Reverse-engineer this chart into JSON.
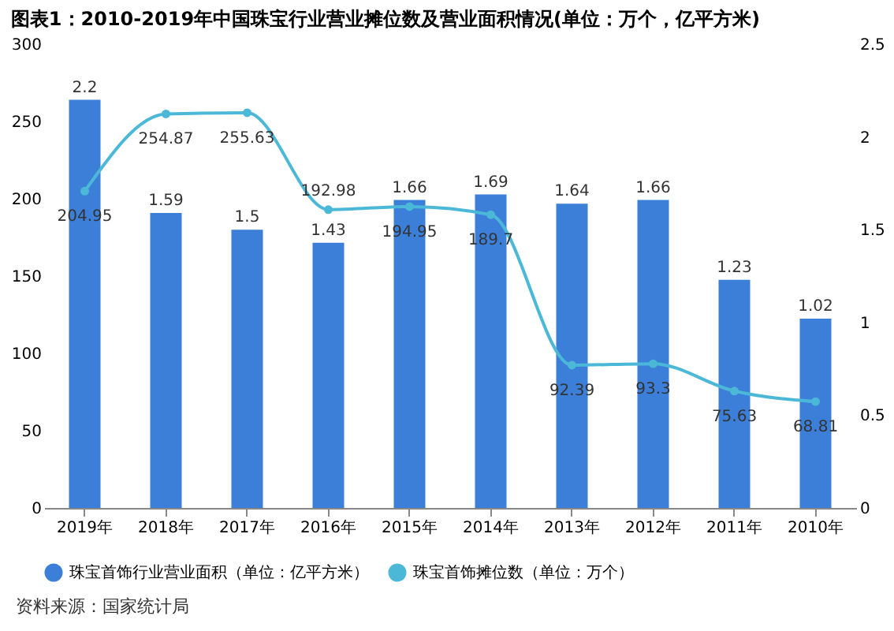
{
  "chart_data": {
    "type": "bar",
    "title": "图表1：2010-2019年中国珠宝行业营业摊位数及营业面积情况(单位：万个，亿平方米)",
    "categories": [
      "2019年",
      "2018年",
      "2017年",
      "2016年",
      "2015年",
      "2014年",
      "2013年",
      "2012年",
      "2011年",
      "2010年"
    ],
    "series": [
      {
        "name": "珠宝首饰行业营业面积（单位：亿平方米）",
        "axis": "y2",
        "color": "#3b7fd9",
        "values": [
          2.2,
          1.59,
          1.5,
          1.43,
          1.66,
          1.69,
          1.64,
          1.66,
          1.23,
          1.02
        ]
      },
      {
        "name": "珠宝首饰摊位数（单位：万个）",
        "type": "line",
        "color": "#4cb8d8",
        "values": [
          204.95,
          254.87,
          255.63,
          192.98,
          194.95,
          189.7,
          92.39,
          93.3,
          75.63,
          68.81
        ]
      }
    ],
    "ylim": [
      0,
      300
    ],
    "yticks": [
      0,
      50,
      100,
      150,
      200,
      250,
      300
    ],
    "y2lim": [
      0,
      2.5
    ],
    "y2ticks": [
      0,
      0.5,
      1,
      1.5,
      2,
      2.5
    ],
    "data_labels": true,
    "marker": "circle",
    "line_style": "solid",
    "legend": "bottom",
    "annotations": [
      "资料来源：国家统计局"
    ]
  }
}
